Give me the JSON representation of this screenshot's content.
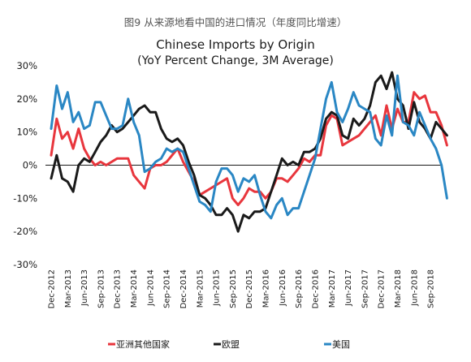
{
  "figure_caption": "图9 从来源地看中国的进口情况（年度同比增速）",
  "chart_data": {
    "type": "line",
    "title": "Chinese Imports by Origin",
    "subtitle": "(YoY Percent Change, 3M Average)",
    "xlabel": "",
    "ylabel": "",
    "ylim": [
      -30,
      30
    ],
    "y_ticks": [
      30,
      20,
      10,
      0,
      -10,
      -20,
      -30
    ],
    "y_tick_labels": [
      "30%",
      "20%",
      "10%",
      "0%",
      "-10%",
      "-20%",
      "-30%"
    ],
    "grid": false,
    "legend_position": "bottom",
    "x_tick_labels": [
      "Dec-2012",
      "Mar-2013",
      "Jun-2013",
      "Sep-2013",
      "Dec-2013",
      "Mar-2014",
      "Jun-2014",
      "Sep-2014",
      "Dec-2014",
      "Mar-2015",
      "Jun-2015",
      "Sep-2015",
      "Dec-2015",
      "Mar-2016",
      "Jun-2016",
      "Sep-2016",
      "Dec-2016",
      "Mar-2017",
      "Jun-2017",
      "Sep-2017",
      "Dec-2017",
      "Mar-2018",
      "Jun-2018",
      "Sep-2018"
    ],
    "x": [
      "2012-12",
      "2013-01",
      "2013-02",
      "2013-03",
      "2013-04",
      "2013-05",
      "2013-06",
      "2013-07",
      "2013-08",
      "2013-09",
      "2013-10",
      "2013-11",
      "2013-12",
      "2014-01",
      "2014-02",
      "2014-03",
      "2014-04",
      "2014-05",
      "2014-06",
      "2014-07",
      "2014-08",
      "2014-09",
      "2014-10",
      "2014-11",
      "2014-12",
      "2015-01",
      "2015-02",
      "2015-03",
      "2015-04",
      "2015-05",
      "2015-06",
      "2015-07",
      "2015-08",
      "2015-09",
      "2015-10",
      "2015-11",
      "2015-12",
      "2016-01",
      "2016-02",
      "2016-03",
      "2016-04",
      "2016-05",
      "2016-06",
      "2016-07",
      "2016-08",
      "2016-09",
      "2016-10",
      "2016-11",
      "2016-12",
      "2017-01",
      "2017-02",
      "2017-03",
      "2017-04",
      "2017-05",
      "2017-06",
      "2017-07",
      "2017-08",
      "2017-09",
      "2017-10",
      "2017-11",
      "2017-12",
      "2018-01",
      "2018-02",
      "2018-03",
      "2018-04",
      "2018-05",
      "2018-06",
      "2018-07",
      "2018-08",
      "2018-09",
      "2018-10",
      "2018-11",
      "2018-12"
    ],
    "series": [
      {
        "name": "亚洲其他国家",
        "color": "#e8363d",
        "values": [
          3,
          14,
          8,
          10,
          5,
          11,
          5,
          2,
          0,
          1,
          0,
          1,
          2,
          2,
          2,
          -3,
          -5,
          -7,
          -1,
          0,
          0,
          1,
          3,
          5,
          1,
          -2,
          -5,
          -9,
          -8,
          -7,
          -6,
          -5,
          -4,
          -10,
          -12,
          -10,
          -7,
          -8,
          -8,
          -10,
          -8,
          -4,
          -4,
          -5,
          -3,
          -1,
          2,
          1,
          3,
          3,
          12,
          15,
          14,
          6,
          7,
          8,
          9,
          11,
          13,
          15,
          9,
          18,
          11,
          17,
          13,
          13,
          22,
          20,
          21,
          16,
          16,
          12,
          6
        ]
      },
      {
        "name": "欧盟",
        "color": "#1a1a1a",
        "values": [
          -4,
          3,
          -4,
          -5,
          -8,
          0,
          2,
          1,
          4,
          7,
          9,
          12,
          10,
          11,
          13,
          15,
          17,
          18,
          16,
          16,
          11,
          8,
          7,
          8,
          6,
          1,
          -3,
          -9,
          -10,
          -12,
          -15,
          -15,
          -13,
          -15,
          -20,
          -15,
          -16,
          -14,
          -14,
          -13,
          -8,
          -3,
          2,
          0,
          1,
          0,
          4,
          4,
          5,
          8,
          14,
          16,
          15,
          9,
          8,
          14,
          12,
          14,
          18,
          25,
          27,
          23,
          28,
          20,
          18,
          11,
          19,
          13,
          11,
          8,
          13,
          11,
          9
        ]
      },
      {
        "name": "美国",
        "color": "#2a87c4",
        "values": [
          11,
          24,
          17,
          22,
          13,
          16,
          11,
          12,
          19,
          19,
          15,
          11,
          11,
          12,
          20,
          13,
          9,
          -2,
          -1,
          1,
          2,
          5,
          4,
          5,
          4,
          -1,
          -6,
          -11,
          -12,
          -14,
          -5,
          -1,
          -1,
          -3,
          -8,
          -4,
          -5,
          -3,
          -9,
          -14,
          -16,
          -12,
          -10,
          -15,
          -13,
          -13,
          -8,
          -3,
          2,
          11,
          20,
          25,
          16,
          13,
          17,
          22,
          18,
          17,
          16,
          8,
          6,
          15,
          9,
          27,
          13,
          12,
          9,
          16,
          12,
          8,
          5,
          0,
          -10
        ]
      }
    ]
  }
}
